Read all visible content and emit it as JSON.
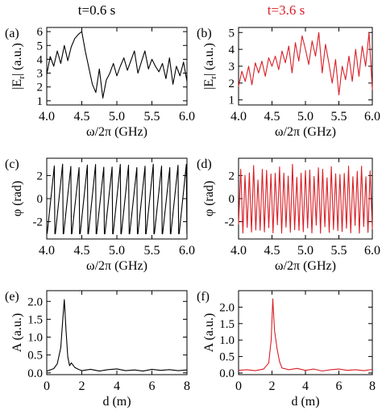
{
  "colors": {
    "left": "#000000",
    "right": "#d91f26",
    "axis": "#000000"
  },
  "chart_data": [
    {
      "id": "a",
      "type": "line",
      "panel_label": "(a)",
      "title": "t=0.6 s",
      "xlabel": "ω/2π (GHz)",
      "ylabel": "|E_r| (a.u.)",
      "xlim": [
        4.0,
        6.0
      ],
      "ylim": [
        0.7,
        6.3
      ],
      "xticks": [
        4.0,
        4.5,
        5.0,
        5.5,
        6.0
      ],
      "xticklabels": [
        "4.0",
        "4.5",
        "5.0",
        "5.5",
        "6.0"
      ],
      "yticks": [
        1,
        2,
        3,
        4,
        5,
        6
      ],
      "yticklabels": [
        "1",
        "2",
        "3",
        "4",
        "5",
        "6"
      ],
      "series": [
        {
          "color": "#000000",
          "x": [
            4.0,
            4.05,
            4.1,
            4.15,
            4.2,
            4.25,
            4.3,
            4.35,
            4.4,
            4.45,
            4.5,
            4.55,
            4.6,
            4.65,
            4.7,
            4.75,
            4.8,
            4.85,
            4.9,
            4.95,
            5.0,
            5.05,
            5.1,
            5.15,
            5.2,
            5.25,
            5.3,
            5.35,
            5.4,
            5.45,
            5.5,
            5.55,
            5.6,
            5.65,
            5.7,
            5.75,
            5.8,
            5.85,
            5.9,
            5.95,
            6.0
          ],
          "y": [
            2.9,
            4.2,
            3.5,
            4.6,
            3.7,
            5.0,
            3.9,
            4.9,
            5.5,
            5.8,
            6.0,
            4.6,
            3.4,
            2.2,
            1.6,
            3.3,
            1.2,
            2.5,
            3.0,
            3.7,
            2.8,
            3.5,
            4.1,
            3.2,
            3.9,
            4.6,
            3.0,
            3.8,
            4.6,
            3.3,
            4.0,
            3.5,
            3.1,
            3.7,
            2.6,
            4.1,
            2.2,
            3.5,
            2.8,
            3.8,
            2.4
          ]
        }
      ]
    },
    {
      "id": "b",
      "type": "line",
      "panel_label": "(b)",
      "title": "t=3.6 s",
      "xlabel": "ω/2π (GHz)",
      "ylabel": "|E_r| (a.u.)",
      "xlim": [
        4.0,
        6.0
      ],
      "ylim": [
        0.7,
        5.3
      ],
      "xticks": [
        4.0,
        4.5,
        5.0,
        5.5,
        6.0
      ],
      "xticklabels": [
        "4.0",
        "4.5",
        "5.0",
        "5.5",
        "6.0"
      ],
      "yticks": [
        1,
        2,
        3,
        4,
        5
      ],
      "yticklabels": [
        "1",
        "2",
        "3",
        "4",
        "5"
      ],
      "series": [
        {
          "color": "#d91f26",
          "x": [
            4.0,
            4.05,
            4.1,
            4.15,
            4.2,
            4.25,
            4.3,
            4.35,
            4.4,
            4.45,
            4.5,
            4.55,
            4.6,
            4.65,
            4.7,
            4.75,
            4.8,
            4.85,
            4.9,
            4.95,
            5.0,
            5.05,
            5.1,
            5.15,
            5.2,
            5.25,
            5.3,
            5.35,
            5.4,
            5.45,
            5.5,
            5.55,
            5.6,
            5.65,
            5.7,
            5.75,
            5.8,
            5.85,
            5.9,
            5.95,
            6.0
          ],
          "y": [
            1.8,
            2.7,
            2.1,
            3.0,
            1.9,
            3.2,
            2.6,
            3.3,
            2.4,
            3.5,
            3.0,
            3.6,
            2.8,
            3.9,
            3.2,
            4.2,
            2.6,
            4.4,
            3.3,
            4.8,
            4.0,
            3.1,
            4.5,
            3.6,
            5.0,
            2.6,
            4.3,
            3.2,
            2.0,
            3.4,
            1.3,
            3.0,
            2.2,
            3.6,
            2.1,
            4.0,
            2.4,
            4.2,
            3.0,
            5.0,
            1.6
          ]
        }
      ]
    },
    {
      "id": "c",
      "type": "line",
      "panel_label": "(c)",
      "xlabel": "ω/2π (GHz)",
      "ylabel": "φ (rad)",
      "xlim": [
        4.0,
        6.0
      ],
      "ylim": [
        -3.5,
        3.5
      ],
      "xticks": [
        4.0,
        4.5,
        5.0,
        5.5,
        6.0
      ],
      "xticklabels": [
        "4.0",
        "4.5",
        "5.0",
        "5.5",
        "6.0"
      ],
      "yticks": [
        -2,
        0,
        2
      ],
      "yticklabels": [
        "-2",
        "0",
        "2"
      ],
      "series": [
        {
          "color": "#000000",
          "pattern": "sawtooth",
          "cycles": 17,
          "amplitude": 3.05
        }
      ]
    },
    {
      "id": "d",
      "type": "line",
      "panel_label": "(d)",
      "xlabel": "ω/2π (GHz)",
      "ylabel": "φ (rad)",
      "xlim": [
        4.0,
        6.0
      ],
      "ylim": [
        -3.5,
        3.5
      ],
      "xticks": [
        4.0,
        4.5,
        5.0,
        5.5,
        6.0
      ],
      "xticklabels": [
        "4.0",
        "4.5",
        "5.0",
        "5.5",
        "6.0"
      ],
      "yticks": [
        -2,
        0,
        2
      ],
      "yticklabels": [
        "-2",
        "0",
        "2"
      ],
      "series": [
        {
          "color": "#d91f26",
          "pattern": "zigzag",
          "cycles": 31,
          "amplitude": 3.0
        }
      ]
    },
    {
      "id": "e",
      "type": "line",
      "panel_label": "(e)",
      "xlabel": "d (m)",
      "ylabel": "A (a.u.)",
      "xlim": [
        0,
        8
      ],
      "ylim": [
        -0.05,
        2.3
      ],
      "xticks": [
        0,
        2,
        4,
        6,
        8
      ],
      "xticklabels": [
        "0",
        "2",
        "4",
        "6",
        "8"
      ],
      "yticks": [
        0.0,
        0.5,
        1.0,
        1.5,
        2.0
      ],
      "yticklabels": [
        "0.0",
        "0.5",
        "1.0",
        "1.5",
        "2.0"
      ],
      "series": [
        {
          "color": "#000000",
          "x": [
            0,
            0.2,
            0.4,
            0.6,
            0.8,
            0.9,
            1.0,
            1.1,
            1.2,
            1.3,
            1.4,
            1.6,
            1.8,
            2.0,
            2.5,
            3.0,
            3.5,
            4.0,
            4.5,
            5.0,
            5.5,
            6.0,
            6.5,
            7.0,
            7.5,
            8.0
          ],
          "y": [
            0.05,
            0.08,
            0.12,
            0.25,
            0.7,
            1.4,
            2.05,
            1.2,
            0.45,
            0.2,
            0.28,
            0.15,
            0.1,
            0.06,
            0.1,
            0.05,
            0.09,
            0.11,
            0.06,
            0.08,
            0.05,
            0.1,
            0.07,
            0.09,
            0.06,
            0.08
          ]
        }
      ]
    },
    {
      "id": "f",
      "type": "line",
      "panel_label": "(f)",
      "xlabel": "d (m)",
      "ylabel": "A (a.u.)",
      "xlim": [
        0,
        8
      ],
      "ylim": [
        -0.05,
        2.5
      ],
      "xticks": [
        0,
        2,
        4,
        6,
        8
      ],
      "xticklabels": [
        "0",
        "2",
        "4",
        "6",
        "8"
      ],
      "yticks": [
        0.0,
        0.5,
        1.0,
        1.5,
        2.0
      ],
      "yticklabels": [
        "0.0",
        "0.5",
        "1.0",
        "1.5",
        "2.0"
      ],
      "series": [
        {
          "color": "#d91f26",
          "x": [
            0,
            0.5,
            1.0,
            1.5,
            1.8,
            1.95,
            2.05,
            2.15,
            2.3,
            2.45,
            2.6,
            3.0,
            3.5,
            4.0,
            4.5,
            5.0,
            5.5,
            6.0,
            6.5,
            7.0,
            7.5,
            8.0
          ],
          "y": [
            0.08,
            0.1,
            0.07,
            0.12,
            0.3,
            1.0,
            2.25,
            1.3,
            0.75,
            0.35,
            0.15,
            0.1,
            0.14,
            0.08,
            0.12,
            0.06,
            0.1,
            0.12,
            0.08,
            0.1,
            0.07,
            0.11
          ]
        }
      ]
    }
  ]
}
